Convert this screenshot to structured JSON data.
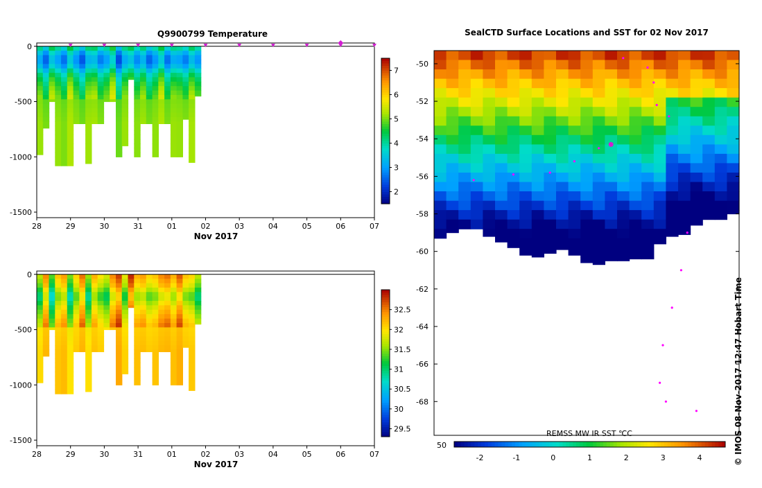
{
  "figure": {
    "credit": "© IMOS 08-Nov-2017 12:47 Hobart Time"
  },
  "chart_data": [
    {
      "type": "heatmap",
      "title": "Q9900799  Temperature",
      "xlabel": "Nov 2017",
      "x_ticks": [
        "28",
        "29",
        "30",
        "31",
        "01",
        "02",
        "03",
        "04",
        "05",
        "06",
        "07"
      ],
      "y_ticks": [
        0,
        -500,
        -1000,
        -1500
      ],
      "ylim": [
        -1550,
        30
      ],
      "colorbar_ticks": [
        2,
        3,
        4,
        5,
        6,
        7
      ],
      "colorbar_range": [
        1.5,
        7.5
      ],
      "surface_markers_day": [
        1,
        2,
        3,
        4,
        5,
        6,
        7,
        8,
        9,
        10
      ],
      "latest_marker_day": 9,
      "profile_start_day": 0.0,
      "profile_step_day": 0.18,
      "profile_max_depth": [
        -980,
        -740,
        -500,
        -1080,
        -1080,
        -1080,
        -700,
        -700,
        -1060,
        -700,
        -700,
        -500,
        -500,
        -1000,
        -900,
        -300,
        -1000,
        -700,
        -700,
        -1000,
        -700,
        -700,
        -1000,
        -1000,
        -660,
        -1050,
        -450
      ],
      "profile_offset": [
        0.2,
        -0.4,
        0.5,
        0.1,
        -0.3,
        0.6,
        0.0,
        -0.5,
        0.3,
        0.4,
        -0.2,
        0.1,
        0.7,
        -0.6,
        0.2,
        0.5,
        -0.1,
        0.3,
        -0.4,
        0.0,
        0.6,
        -0.3,
        0.2,
        0.1,
        -0.2,
        0.4,
        0.0
      ],
      "profile_levels": [
        [
          0,
          4.2
        ],
        [
          -60,
          3.3
        ],
        [
          -120,
          2.8
        ],
        [
          -180,
          3.2
        ],
        [
          -250,
          4.0
        ],
        [
          -320,
          4.4
        ],
        [
          -400,
          4.7
        ],
        [
          -500,
          5.0
        ],
        [
          -700,
          5.1
        ],
        [
          -1100,
          5.1
        ]
      ]
    },
    {
      "type": "heatmap",
      "title": "",
      "xlabel": "Nov 2017",
      "x_ticks": [
        "28",
        "29",
        "30",
        "31",
        "01",
        "02",
        "03",
        "04",
        "05",
        "06",
        "07"
      ],
      "y_ticks": [
        0,
        -500,
        -1000,
        -1500
      ],
      "ylim": [
        -1550,
        30
      ],
      "colorbar_ticks": [
        29.5,
        30,
        30.5,
        31,
        31.5,
        32,
        32.5
      ],
      "colorbar_range": [
        29.3,
        33.0
      ],
      "profile_start_day": 0.0,
      "profile_step_day": 0.18,
      "profile_max_depth": [
        -980,
        -740,
        -500,
        -1080,
        -1080,
        -1080,
        -700,
        -700,
        -1060,
        -700,
        -700,
        -500,
        -500,
        -1000,
        -900,
        -300,
        -1000,
        -700,
        -700,
        -1000,
        -700,
        -700,
        -1000,
        -1000,
        -660,
        -1050,
        -450
      ],
      "profile_offset": [
        -0.3,
        0.5,
        -0.6,
        0.2,
        0.4,
        -0.5,
        0.1,
        0.6,
        -0.4,
        0.3,
        0.0,
        -0.2,
        0.5,
        0.8,
        -0.1,
        0.9,
        0.3,
        0.4,
        0.1,
        0.2,
        0.5,
        0.6,
        0.3,
        0.7,
        0.2,
        0.1,
        -0.3
      ],
      "profile_levels": [
        [
          0,
          32.0
        ],
        [
          -100,
          31.7
        ],
        [
          -200,
          31.2
        ],
        [
          -300,
          31.6
        ],
        [
          -450,
          32.0
        ],
        [
          -700,
          32.1
        ],
        [
          -1100,
          32.1
        ]
      ]
    },
    {
      "type": "heatmap",
      "title": "SealCTD Surface Locations and SST for 02 Nov 2017",
      "y_ticks": [
        "-50",
        "-52",
        "-54",
        "-56",
        "-58",
        "-60",
        "-62",
        "-64",
        "-66",
        "-68"
      ],
      "lat_range": [
        -69.8,
        -49.3
      ],
      "x_edge_label": "50",
      "colorbar_label": "REMSS MW IR SST ℃C",
      "colorbar_ticks": [
        "-2",
        "-1",
        "0",
        "1",
        "2",
        "3",
        "4"
      ],
      "colorbar_range": [
        -2.7,
        4.7
      ],
      "sea_ice_edge_lat": [
        -59.3,
        -59.0,
        -58.8,
        -58.8,
        -59.2,
        -59.5,
        -59.8,
        -60.2,
        -60.3,
        -60.1,
        -59.9,
        -60.2,
        -60.6,
        -60.7,
        -60.5,
        -60.5,
        -60.4,
        -60.4,
        -59.6,
        -59.2,
        -59.1,
        -58.6,
        -58.3,
        -58.3,
        -58.0
      ],
      "track": [
        {
          "lat": -49.7,
          "lon_frac": 0.62
        },
        {
          "lat": -50.2,
          "lon_frac": 0.7
        },
        {
          "lat": -51.0,
          "lon_frac": 0.72
        },
        {
          "lat": -52.2,
          "lon_frac": 0.73
        },
        {
          "lat": -52.8,
          "lon_frac": 0.77
        },
        {
          "lat": -54.5,
          "lon_frac": 0.54
        },
        {
          "lat": -55.2,
          "lon_frac": 0.46
        },
        {
          "lat": -55.8,
          "lon_frac": 0.38
        },
        {
          "lat": -55.9,
          "lon_frac": 0.26
        },
        {
          "lat": -56.2,
          "lon_frac": 0.13
        },
        {
          "lat": -59.0,
          "lon_frac": 0.83
        },
        {
          "lat": -61.0,
          "lon_frac": 0.81
        },
        {
          "lat": -63.0,
          "lon_frac": 0.78
        },
        {
          "lat": -65.0,
          "lon_frac": 0.75
        },
        {
          "lat": -67.0,
          "lon_frac": 0.74
        },
        {
          "lat": -68.0,
          "lon_frac": 0.76
        },
        {
          "lat": -68.5,
          "lon_frac": 0.86
        }
      ],
      "current_position": {
        "lat": -54.3,
        "lon_frac": 0.58
      }
    }
  ]
}
